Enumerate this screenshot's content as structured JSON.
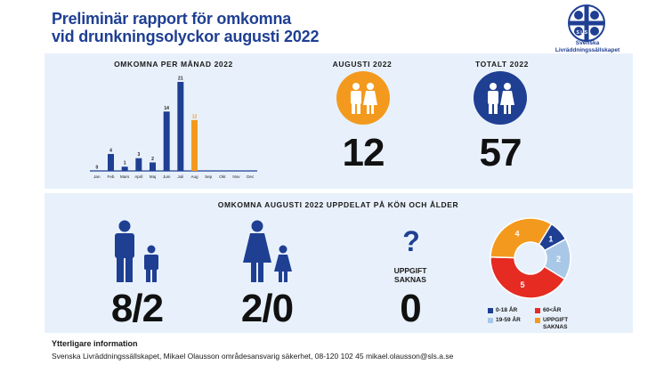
{
  "header": {
    "title_line1": "Preliminär rapport för omkomna",
    "title_line2": "vid drunkningsolyckor augusti 2022",
    "logo_text_line1": "Svenska",
    "logo_text_line2": "Livräddningssällskapet",
    "logo_letters": "S L S"
  },
  "colors": {
    "navy": "#1f3f93",
    "orange": "#f39a1e",
    "red": "#e52b22",
    "light_blue": "#a9c8e8",
    "panel": "#e8f1fb"
  },
  "monthly": {
    "heading": "OMKOMNA PER MÅNAD 2022"
  },
  "august": {
    "heading": "AUGUSTI 2022",
    "value": "12",
    "icon": "man-woman-icon"
  },
  "total": {
    "heading": "TOTALT 2022",
    "value": "57",
    "icon": "man-woman-icon"
  },
  "breakdown": {
    "heading": "OMKOMNA AUGUSTI 2022 UPPDELAT PÅ KÖN OCH ÅLDER",
    "men_value": "8/2",
    "women_value": "2/0",
    "unknown_label_line1": "UPPGIFT",
    "unknown_label_line2": "SAKNAS",
    "unknown_value": "0",
    "unknown_icon": "question-mark-icon"
  },
  "legend": [
    {
      "label": "0-18 ÅR",
      "color": "#1f3f93"
    },
    {
      "label": "60<ÅR",
      "color": "#e52b22"
    },
    {
      "label": "19-59 ÅR",
      "color": "#a9c8e8"
    },
    {
      "label_line1": "UPPGIFT",
      "label_line2": "SAKNAS",
      "color": "#f39a1e"
    }
  ],
  "footer": {
    "title": "Ytterligare information",
    "text": "Svenska Livräddningssällskapet, Mikael Olausson områdesansvarig säkerhet, 08-120 102 45 mikael.olausson@sls.a.se"
  },
  "chart_data": [
    {
      "type": "bar",
      "title": "OMKOMNA PER MÅNAD 2022",
      "categories": [
        "Jan",
        "Feb",
        "Mars",
        "April",
        "Maj",
        "Juni",
        "Juli",
        "Aug",
        "Sep",
        "Okt",
        "Nov",
        "Dec"
      ],
      "values": [
        0,
        4,
        1,
        3,
        2,
        14,
        21,
        12,
        null,
        null,
        null,
        null
      ],
      "highlight_category": "Aug",
      "colors": {
        "default": "#1f3f93",
        "highlight": "#f39a1e"
      },
      "ylim": [
        0,
        21
      ]
    },
    {
      "type": "pie",
      "style": "donut",
      "slices": [
        {
          "label": "0-18 ÅR",
          "value": 1,
          "color": "#1f3f93"
        },
        {
          "label": "19-59 ÅR",
          "value": 2,
          "color": "#a9c8e8"
        },
        {
          "label": "60<ÅR",
          "value": 5,
          "color": "#e52b22"
        },
        {
          "label": "UPPGIFT SAKNAS",
          "value": 4,
          "color": "#f39a1e"
        }
      ]
    }
  ]
}
